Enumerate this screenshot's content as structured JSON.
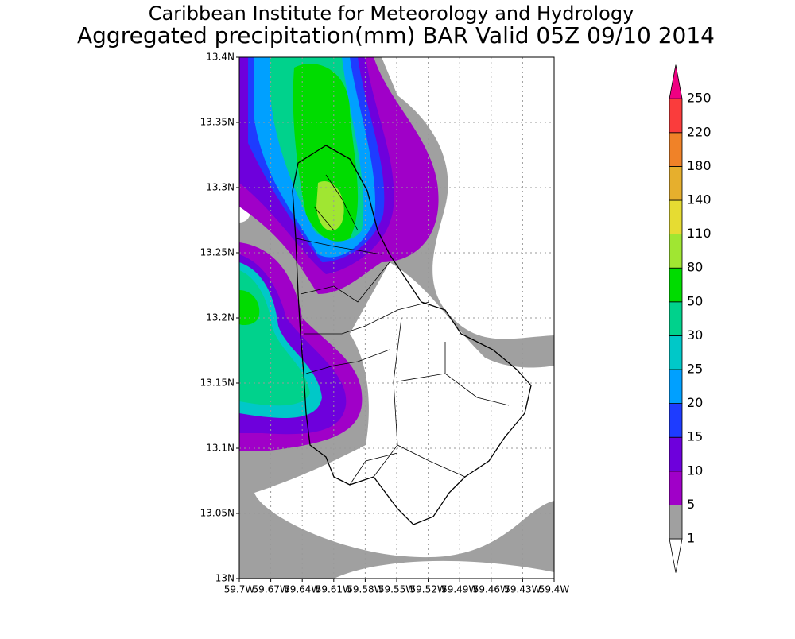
{
  "title": "Caribbean Institute for Meteorology and Hydrology",
  "subtitle": "Aggregated precipitation(mm) BAR Valid 05Z 09/10 2014",
  "map": {
    "latlim": [
      13,
      13.4
    ],
    "lonlim": [
      59.7,
      59.4
    ],
    "grid": true,
    "lat_ticks": [
      {
        "value": 13,
        "label": "13N"
      },
      {
        "value": 13.05,
        "label": "13.05N"
      },
      {
        "value": 13.1,
        "label": "13.1N"
      },
      {
        "value": 13.15,
        "label": "13.15N"
      },
      {
        "value": 13.2,
        "label": "13.2N"
      },
      {
        "value": 13.25,
        "label": "13.25N"
      },
      {
        "value": 13.3,
        "label": "13.3N"
      },
      {
        "value": 13.35,
        "label": "13.35N"
      },
      {
        "value": 13.4,
        "label": "13.4N"
      }
    ],
    "lon_ticks": [
      {
        "value": 59.7,
        "label": "59.7W"
      },
      {
        "value": 59.67,
        "label": "59.67W"
      },
      {
        "value": 59.64,
        "label": "59.64W"
      },
      {
        "value": 59.61,
        "label": "59.61W"
      },
      {
        "value": 59.58,
        "label": "59.58W"
      },
      {
        "value": 59.55,
        "label": "59.55W"
      },
      {
        "value": 59.52,
        "label": "59.52W"
      },
      {
        "value": 59.49,
        "label": "59.49W"
      },
      {
        "value": 59.46,
        "label": "59.46W"
      },
      {
        "value": 59.43,
        "label": "59.43W"
      },
      {
        "value": 59.4,
        "label": "59.4W"
      }
    ]
  },
  "colorbar": {
    "levels": [
      1,
      5,
      10,
      15,
      20,
      25,
      30,
      50,
      80,
      110,
      140,
      180,
      220,
      250
    ],
    "colors": [
      "#ffffff",
      "#a0a0a0",
      "#a000c8",
      "#6e00dc",
      "#1e3cff",
      "#00a0ff",
      "#00c8c8",
      "#00d28c",
      "#00dc00",
      "#a0e632",
      "#e6dc32",
      "#e6af2d",
      "#f08228",
      "#fa3c3c",
      "#f00082"
    ]
  }
}
